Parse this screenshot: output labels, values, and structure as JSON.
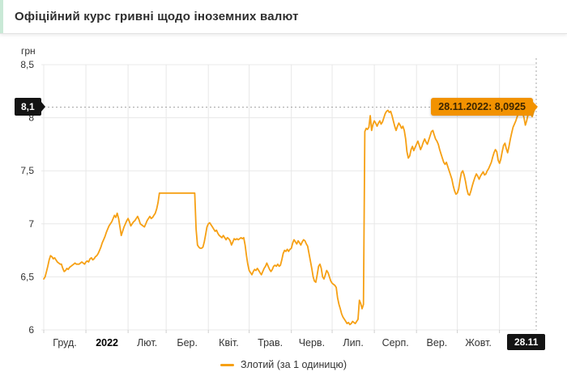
{
  "header": {
    "title": "Офіційний курс гривні щодо іноземних валют"
  },
  "axis": {
    "unit_label": "грн",
    "y_ticks": [
      "8,5",
      "8",
      "7,5",
      "7",
      "6,5",
      "6"
    ],
    "y_tick_values": [
      8.5,
      8,
      7.5,
      7,
      6.5,
      6
    ],
    "x_ticks": [
      "Груд.",
      "2022",
      "Лют.",
      "Бер.",
      "Квіт.",
      "Трав.",
      "Черв.",
      "Лип.",
      "Серп.",
      "Вер.",
      "Жовт."
    ],
    "x_end_badge": "28.11"
  },
  "annotations": {
    "current_value_badge": "8,1",
    "current_value_level": 8.1,
    "tooltip": "28.11.2022: 8,0925",
    "tooltip_value": 8.0925
  },
  "legend": {
    "label": "Злотий (за 1 одиницю)"
  },
  "colors": {
    "line": "#f6a014",
    "tooltip_bg": "#f29200",
    "badge_bg": "#141414",
    "grid": "#e8e8e8",
    "axis_tick": "#cfcfcf",
    "dotted": "#a6a6a6",
    "text": "#333333",
    "accent_strip": "#c9e9d6"
  },
  "chart_data": {
    "type": "line",
    "title": "Офіційний курс гривні щодо іноземних валют",
    "ylabel": "грн",
    "ylim": [
      6,
      8.5
    ],
    "grid": true,
    "legend_position": "bottom-center",
    "x_tick_labels": [
      "Груд.",
      "2022",
      "Лют.",
      "Бер.",
      "Квіт.",
      "Трав.",
      "Черв.",
      "Лип.",
      "Серп.",
      "Вер.",
      "Жовт.",
      "28.11"
    ],
    "month_day_counts": [
      31,
      31,
      28,
      31,
      30,
      31,
      30,
      31,
      31,
      30,
      31,
      28
    ],
    "end_point": {
      "label": "28.11.2022",
      "value": 8.0925
    },
    "reference_line_y": 8.1,
    "series": [
      {
        "name": "Злотий (за 1 одиницю)",
        "granularity": "daily",
        "values": [
          6.48,
          6.5,
          6.55,
          6.6,
          6.66,
          6.7,
          6.69,
          6.67,
          6.68,
          6.66,
          6.64,
          6.63,
          6.62,
          6.62,
          6.58,
          6.55,
          6.56,
          6.58,
          6.57,
          6.59,
          6.6,
          6.61,
          6.62,
          6.63,
          6.62,
          6.62,
          6.62,
          6.63,
          6.64,
          6.63,
          6.62,
          6.64,
          6.65,
          6.64,
          6.67,
          6.68,
          6.66,
          6.67,
          6.69,
          6.7,
          6.72,
          6.75,
          6.78,
          6.82,
          6.85,
          6.88,
          6.92,
          6.95,
          6.98,
          7.0,
          7.02,
          7.05,
          7.08,
          7.06,
          7.1,
          7.05,
          6.97,
          6.89,
          6.93,
          6.97,
          7.0,
          7.03,
          7.05,
          7.02,
          6.98,
          7.0,
          7.02,
          7.03,
          7.05,
          7.07,
          7.04,
          7.0,
          6.99,
          6.98,
          6.97,
          7.0,
          7.03,
          7.05,
          7.07,
          7.05,
          7.06,
          7.08,
          7.1,
          7.14,
          7.2,
          7.29,
          7.29,
          7.29,
          7.29,
          7.29,
          7.29,
          7.29,
          7.29,
          7.29,
          7.29,
          7.29,
          7.29,
          7.29,
          7.29,
          7.29,
          7.29,
          7.29,
          7.29,
          7.29,
          7.29,
          7.29,
          7.29,
          7.29,
          7.29,
          7.29,
          7.29,
          7.29,
          6.95,
          6.8,
          6.78,
          6.77,
          6.77,
          6.78,
          6.83,
          6.9,
          6.97,
          7.0,
          7.01,
          6.99,
          6.97,
          6.95,
          6.93,
          6.94,
          6.91,
          6.89,
          6.88,
          6.87,
          6.89,
          6.87,
          6.85,
          6.87,
          6.86,
          6.84,
          6.8,
          6.83,
          6.86,
          6.85,
          6.86,
          6.85,
          6.86,
          6.87,
          6.86,
          6.87,
          6.8,
          6.7,
          6.62,
          6.56,
          6.54,
          6.52,
          6.55,
          6.57,
          6.56,
          6.58,
          6.56,
          6.54,
          6.52,
          6.55,
          6.58,
          6.6,
          6.63,
          6.6,
          6.57,
          6.55,
          6.57,
          6.6,
          6.61,
          6.6,
          6.62,
          6.6,
          6.61,
          6.66,
          6.72,
          6.75,
          6.74,
          6.76,
          6.74,
          6.76,
          6.77,
          6.82,
          6.85,
          6.83,
          6.81,
          6.84,
          6.82,
          6.8,
          6.83,
          6.85,
          6.84,
          6.81,
          6.79,
          6.72,
          6.65,
          6.58,
          6.5,
          6.46,
          6.45,
          6.52,
          6.6,
          6.62,
          6.58,
          6.5,
          6.48,
          6.52,
          6.56,
          6.54,
          6.5,
          6.46,
          6.44,
          6.43,
          6.42,
          6.4,
          6.3,
          6.24,
          6.2,
          6.15,
          6.12,
          6.1,
          6.08,
          6.06,
          6.07,
          6.05,
          6.06,
          6.08,
          6.07,
          6.06,
          6.08,
          6.1,
          6.28,
          6.25,
          6.2,
          6.24,
          7.87,
          7.9,
          7.89,
          7.91,
          8.02,
          7.88,
          7.94,
          7.97,
          7.95,
          7.92,
          7.95,
          7.97,
          7.94,
          7.96,
          8.0,
          8.04,
          8.06,
          8.07,
          8.05,
          8.06,
          8.02,
          7.97,
          7.92,
          7.88,
          7.92,
          7.95,
          7.93,
          7.9,
          7.92,
          7.88,
          7.8,
          7.68,
          7.62,
          7.64,
          7.7,
          7.73,
          7.69,
          7.72,
          7.75,
          7.78,
          7.74,
          7.7,
          7.73,
          7.77,
          7.8,
          7.77,
          7.75,
          7.79,
          7.83,
          7.87,
          7.88,
          7.84,
          7.8,
          7.78,
          7.75,
          7.7,
          7.66,
          7.62,
          7.58,
          7.56,
          7.58,
          7.54,
          7.5,
          7.46,
          7.42,
          7.36,
          7.31,
          7.28,
          7.29,
          7.33,
          7.41,
          7.48,
          7.5,
          7.46,
          7.4,
          7.33,
          7.28,
          7.27,
          7.31,
          7.36,
          7.4,
          7.44,
          7.47,
          7.45,
          7.42,
          7.45,
          7.47,
          7.49,
          7.46,
          7.47,
          7.5,
          7.52,
          7.55,
          7.58,
          7.63,
          7.67,
          7.7,
          7.68,
          7.6,
          7.57,
          7.61,
          7.68,
          7.74,
          7.76,
          7.71,
          7.67,
          7.73,
          7.8,
          7.86,
          7.91,
          7.94,
          7.97,
          8.01,
          8.05,
          8.08,
          8.09,
          8.05,
          8.0,
          7.93,
          7.97,
          8.03,
          8.07,
          8.04,
          8.01,
          8.05,
          8.08,
          8.0925
        ]
      }
    ]
  }
}
